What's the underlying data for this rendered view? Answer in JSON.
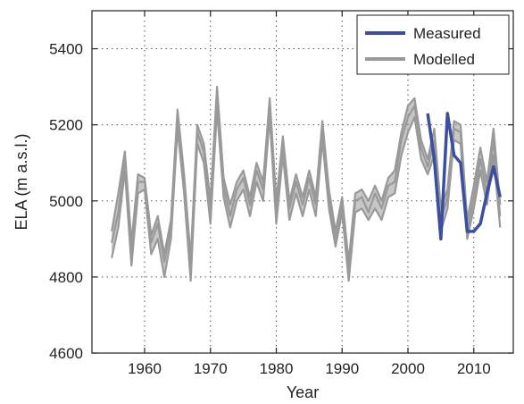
{
  "chart_data": {
    "type": "line",
    "xlabel": "Year",
    "ylabel": "ELA (m a.s.l.)",
    "xlim": [
      1952,
      2016
    ],
    "ylim": [
      4600,
      5500
    ],
    "xticks": [
      1960,
      1970,
      1980,
      1990,
      2000,
      2010
    ],
    "yticks": [
      4600,
      4800,
      5000,
      5200,
      5400
    ],
    "grid": true,
    "legend_position": "top-right",
    "legend": [
      "Measured",
      "Modelled"
    ],
    "colors": {
      "measured": "#3b4fa0",
      "modelled": "#999999"
    },
    "x": [
      1955,
      1956,
      1957,
      1958,
      1959,
      1960,
      1961,
      1962,
      1963,
      1964,
      1965,
      1966,
      1967,
      1968,
      1969,
      1970,
      1971,
      1972,
      1973,
      1974,
      1975,
      1976,
      1977,
      1978,
      1979,
      1980,
      1981,
      1982,
      1983,
      1984,
      1985,
      1986,
      1987,
      1988,
      1989,
      1990,
      1991,
      1992,
      1993,
      1994,
      1995,
      1996,
      1997,
      1998,
      1999,
      2000,
      2001,
      2002,
      2003,
      2004,
      2005,
      2006,
      2007,
      2008,
      2009,
      2010,
      2011,
      2012,
      2013,
      2014
    ],
    "series": [
      {
        "name": "Modelled",
        "values": [
          4890,
          4970,
          5110,
          4860,
          5050,
          5050,
          4890,
          4940,
          4840,
          4930,
          5220,
          5050,
          4830,
          5180,
          5130,
          4970,
          5280,
          5040,
          4960,
          5030,
          5060,
          4990,
          5080,
          5030,
          5250,
          4970,
          5150,
          4980,
          5050,
          4990,
          5060,
          4990,
          5190,
          5010,
          4900,
          4990,
          4820,
          5000,
          5010,
          4970,
          5020,
          4980,
          5040,
          5050,
          5160,
          5220,
          5250,
          5140,
          5090,
          5160,
          4950,
          5010,
          5190,
          5180,
          4920,
          5010,
          5110,
          5020,
          5160,
          4960
        ],
        "values_upper": [
          4920,
          5020,
          5130,
          4890,
          5070,
          5060,
          4910,
          4960,
          4860,
          4950,
          5240,
          5070,
          4850,
          5200,
          5150,
          5000,
          5300,
          5060,
          4990,
          5050,
          5080,
          5010,
          5100,
          5050,
          5270,
          5000,
          5170,
          5000,
          5070,
          5010,
          5080,
          5010,
          5210,
          5030,
          4920,
          5010,
          4840,
          5020,
          5030,
          5000,
          5040,
          5000,
          5060,
          5080,
          5180,
          5250,
          5270,
          5160,
          5110,
          5190,
          4980,
          5030,
          5210,
          5200,
          4950,
          5040,
          5140,
          5050,
          5190,
          4990
        ],
        "values_lower": [
          4850,
          4930,
          5080,
          4830,
          5020,
          5030,
          4860,
          4900,
          4800,
          4900,
          5190,
          5020,
          4790,
          5150,
          5100,
          4940,
          5240,
          5010,
          4930,
          5000,
          5030,
          4960,
          5050,
          5000,
          5220,
          4940,
          5120,
          4950,
          5020,
          4960,
          5030,
          4960,
          5160,
          4980,
          4880,
          4970,
          4790,
          4970,
          4980,
          4950,
          4980,
          4950,
          5010,
          5020,
          5120,
          5180,
          5220,
          5110,
          5070,
          5120,
          4920,
          4980,
          5160,
          5150,
          4900,
          4980,
          5080,
          4990,
          5120,
          4930
        ]
      },
      {
        "name": "Measured",
        "x": [
          2003,
          2004,
          2005,
          2006,
          2007,
          2008,
          2009,
          2010,
          2011,
          2012,
          2013,
          2014
        ],
        "values": [
          5230,
          5110,
          4900,
          5230,
          5120,
          5100,
          4920,
          4920,
          4940,
          5020,
          5090,
          5010
        ]
      }
    ]
  }
}
